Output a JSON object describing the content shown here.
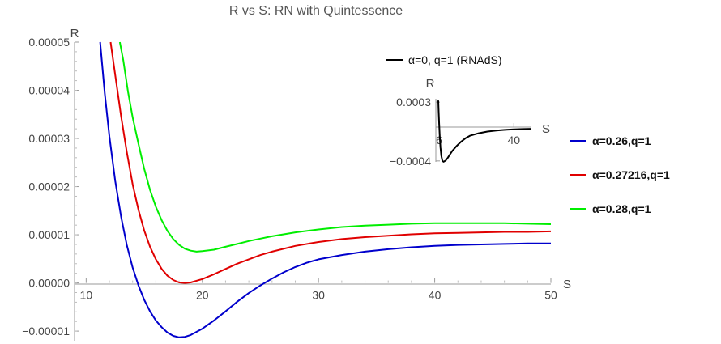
{
  "chart_data": [
    {
      "type": "line",
      "title": "R vs S: RN with Quintessence",
      "xlabel": "S",
      "ylabel": "R",
      "xlim": [
        9,
        50
      ],
      "ylim": [
        -1.2e-05,
        5e-05
      ],
      "x_ticks": [
        "10",
        "20",
        "30",
        "40",
        "50"
      ],
      "y_ticks": [
        "0.00005",
        "0.00004",
        "0.00003",
        "0.00002",
        "0.00001",
        "0.00000",
        "-0.00001"
      ],
      "grid": false,
      "legend_position": "right",
      "series": [
        {
          "name": "α=0.26,q=1",
          "color": "#0000cc",
          "x": [
            11.2,
            11.6,
            12,
            12.5,
            13,
            13.5,
            14,
            14.5,
            15,
            15.5,
            16,
            16.5,
            17,
            17.5,
            18,
            18.5,
            19,
            20,
            21,
            22,
            23,
            24,
            25,
            26,
            27,
            28,
            29,
            30,
            32,
            34,
            36,
            38,
            40,
            42,
            44,
            46,
            48,
            50
          ],
          "y": [
            5e-05,
            3.94e-05,
            3.05e-05,
            2.12e-05,
            1.38e-05,
            7.9e-06,
            3.2e-06,
            -5e-07,
            -3.5e-06,
            -5.9e-06,
            -7.8e-06,
            -9.2e-06,
            -1.03e-05,
            -1.1e-05,
            -1.13e-05,
            -1.12e-05,
            -1.08e-05,
            -9.5e-06,
            -7.8e-06,
            -5.9e-06,
            -3.9e-06,
            -2.1e-06,
            -5e-07,
            9e-07,
            2.2e-06,
            3.3e-06,
            4.2e-06,
            4.9e-06,
            5.8e-06,
            6.5e-06,
            7e-06,
            7.4e-06,
            7.7e-06,
            7.9e-06,
            8e-06,
            8.1e-06,
            8.2e-06,
            8.2e-06
          ]
        },
        {
          "name": "α=0.27216,q=1",
          "color": "#e00000",
          "x": [
            12.1,
            12.5,
            13,
            13.5,
            14,
            14.5,
            15,
            15.5,
            16,
            16.5,
            17,
            17.5,
            18,
            18.5,
            19,
            20,
            21,
            22,
            23,
            24,
            25,
            26,
            28,
            30,
            32,
            34,
            36,
            38,
            40,
            42,
            44,
            46,
            48,
            50
          ],
          "y": [
            5e-05,
            4.32e-05,
            3.47e-05,
            2.72e-05,
            2.05e-05,
            1.52e-05,
            1.09e-05,
            7.5e-06,
            4.9e-06,
            2.9e-06,
            1.5e-06,
            6e-07,
            1e-07,
            0.0,
            1e-07,
            8e-07,
            1.8e-06,
            2.9e-06,
            4e-06,
            4.9e-06,
            5.8e-06,
            6.5e-06,
            7.7e-06,
            8.5e-06,
            9.1e-06,
            9.5e-06,
            9.8e-06,
            1.01e-05,
            1.03e-05,
            1.04e-05,
            1.05e-05,
            1.06e-05,
            1.06e-05,
            1.07e-05
          ]
        },
        {
          "name": "α=0.28,q=1",
          "color": "#00ee00",
          "x": [
            12.9,
            13.2,
            13.6,
            14,
            14.5,
            15,
            15.5,
            16,
            16.5,
            17,
            17.5,
            18,
            18.5,
            19,
            19.5,
            20,
            21,
            22,
            23,
            24,
            25,
            26,
            28,
            30,
            32,
            34,
            36,
            38,
            40,
            42,
            44,
            46,
            48,
            50
          ],
          "y": [
            5e-05,
            4.62e-05,
            3.97e-05,
            3.44e-05,
            2.89e-05,
            2.37e-05,
            1.93e-05,
            1.58e-05,
            1.3e-05,
            1.08e-05,
            9.1e-06,
            7.9e-06,
            7.1e-06,
            6.7e-06,
            6.5e-06,
            6.6e-06,
            6.9e-06,
            7.5e-06,
            8.1e-06,
            8.7e-06,
            9.2e-06,
            9.7e-06,
            1.05e-05,
            1.11e-05,
            1.16e-05,
            1.19e-05,
            1.21e-05,
            1.23e-05,
            1.24e-05,
            1.24e-05,
            1.24e-05,
            1.24e-05,
            1.23e-05,
            1.22e-05
          ]
        }
      ]
    },
    {
      "type": "line",
      "title": "",
      "xlabel": "S",
      "ylabel": "R",
      "xlim": [
        4.5,
        48
      ],
      "ylim": [
        -0.00044,
        0.00034
      ],
      "x_ticks": [
        "6",
        "40"
      ],
      "y_ticks": [
        "0.0003",
        "-0.0004"
      ],
      "legend_position": "top",
      "series": [
        {
          "name": "α=0, q=1 (RNAdS)",
          "color": "#000000",
          "x": [
            5.6,
            5.8,
            6.0,
            6.3,
            6.6,
            7.0,
            7.5,
            8.0,
            9.0,
            10,
            11,
            12,
            14,
            16,
            18,
            20,
            24,
            28,
            32,
            36,
            40,
            44,
            48
          ],
          "y": [
            0.00032,
            0.00018,
            4e-05,
            -0.00012,
            -0.00024,
            -0.00034,
            -0.0004,
            -0.00041,
            -0.000395,
            -0.00036,
            -0.00032,
            -0.00028,
            -0.00022,
            -0.00017,
            -0.00013,
            -0.0001,
            -7e-05,
            -5e-05,
            -3.8e-05,
            -3e-05,
            -2.4e-05,
            -2e-05,
            -1.7e-05
          ]
        }
      ]
    }
  ]
}
